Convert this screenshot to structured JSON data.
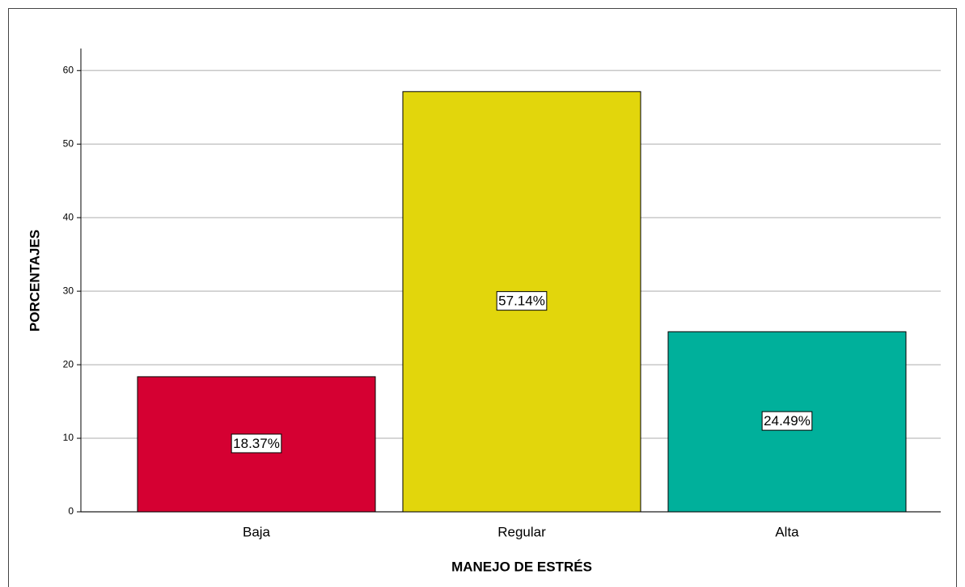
{
  "chart_data": {
    "type": "bar",
    "x_label": "MANEJO DE ESTRÉS",
    "y_label": "PORCENTAJES",
    "categories": [
      "Baja",
      "Regular",
      "Alta"
    ],
    "values": [
      18.37,
      57.14,
      24.49
    ],
    "value_labels": [
      "18.37%",
      "57.14%",
      "24.49%"
    ],
    "colors": [
      "#d50032",
      "#e2d60c",
      "#00b09b"
    ],
    "ylim": [
      0,
      63
    ],
    "yticks": [
      0,
      10,
      20,
      30,
      40,
      50,
      60
    ],
    "grid": true
  }
}
